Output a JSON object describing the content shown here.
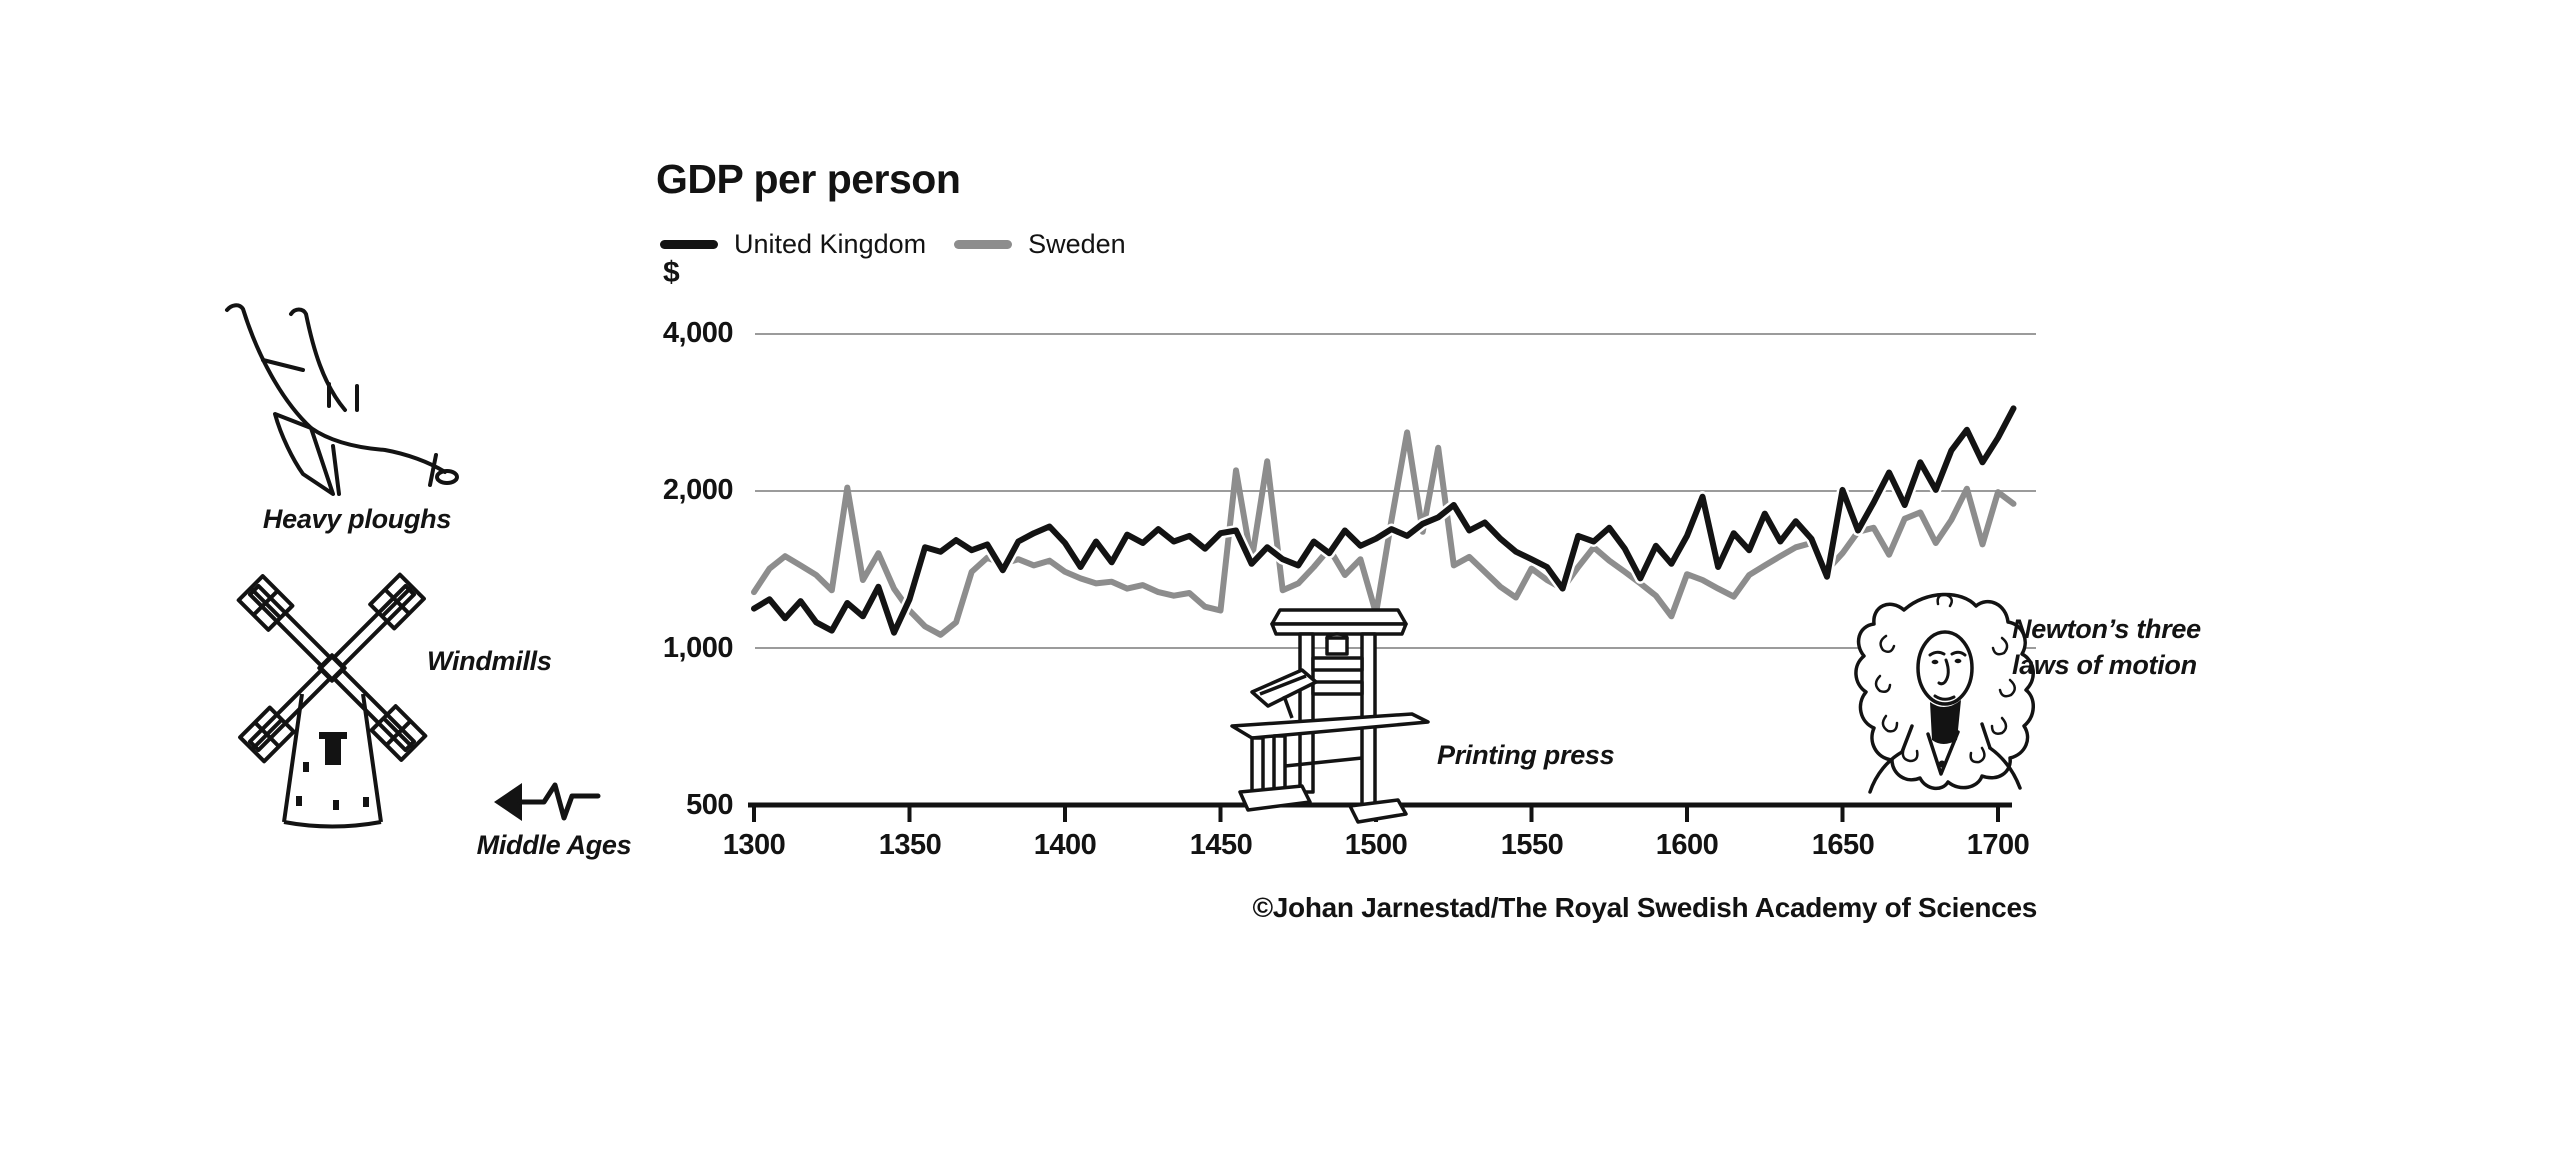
{
  "chart": {
    "title": "GDP per person",
    "unit": "$",
    "legend": [
      {
        "label": "United Kingdom",
        "color": "#131313"
      },
      {
        "label": "Sweden",
        "color": "#8d8d8d"
      }
    ],
    "y_ticks": [
      "4,000",
      "2,000",
      "1,000",
      "500"
    ],
    "x_ticks": [
      "1300",
      "1350",
      "1400",
      "1450",
      "1500",
      "1550",
      "1600",
      "1650",
      "1700"
    ]
  },
  "annotations": {
    "heavy_ploughs": "Heavy ploughs",
    "windmills": "Windmills",
    "middle_ages": "Middle Ages",
    "printing_press": "Printing press",
    "newton_line1": "Newton’s three",
    "newton_line2": "laws of motion"
  },
  "credit": "©Johan Jarnestad/The Royal Swedish Academy of Sciences",
  "chart_data": {
    "type": "line",
    "title": "GDP per person",
    "ylabel": "$",
    "y_scale": "log",
    "ylim": [
      500,
      4500
    ],
    "xlim": [
      1300,
      1710
    ],
    "x_tick_values": [
      1300,
      1350,
      1400,
      1450,
      1500,
      1550,
      1600,
      1650,
      1700
    ],
    "y_gridline_values": [
      1000,
      2000,
      4000
    ],
    "baseline_value": 500,
    "legend_position": "top-left",
    "grid": true,
    "x": [
      1300,
      1305,
      1310,
      1315,
      1320,
      1325,
      1330,
      1335,
      1340,
      1345,
      1350,
      1355,
      1360,
      1365,
      1370,
      1375,
      1380,
      1385,
      1390,
      1395,
      1400,
      1405,
      1410,
      1415,
      1420,
      1425,
      1430,
      1435,
      1440,
      1445,
      1450,
      1455,
      1460,
      1465,
      1470,
      1475,
      1480,
      1485,
      1490,
      1495,
      1500,
      1505,
      1510,
      1515,
      1520,
      1525,
      1530,
      1535,
      1540,
      1545,
      1550,
      1555,
      1560,
      1565,
      1570,
      1575,
      1580,
      1585,
      1590,
      1595,
      1600,
      1605,
      1610,
      1615,
      1620,
      1625,
      1630,
      1635,
      1640,
      1645,
      1650,
      1655,
      1660,
      1665,
      1670,
      1675,
      1680,
      1685,
      1690,
      1695,
      1700,
      1705
    ],
    "series": [
      {
        "name": "United Kingdom",
        "color": "#131313",
        "values": [
          1190,
          1240,
          1140,
          1230,
          1120,
          1080,
          1220,
          1150,
          1310,
          1070,
          1240,
          1560,
          1530,
          1610,
          1540,
          1580,
          1410,
          1600,
          1660,
          1710,
          1590,
          1430,
          1600,
          1460,
          1650,
          1590,
          1690,
          1600,
          1640,
          1550,
          1660,
          1680,
          1450,
          1560,
          1480,
          1440,
          1600,
          1520,
          1680,
          1570,
          1620,
          1690,
          1640,
          1730,
          1780,
          1880,
          1680,
          1740,
          1620,
          1530,
          1480,
          1430,
          1300,
          1640,
          1600,
          1700,
          1550,
          1360,
          1570,
          1450,
          1640,
          1950,
          1430,
          1660,
          1540,
          1810,
          1600,
          1750,
          1620,
          1370,
          2010,
          1680,
          1900,
          2170,
          1880,
          2270,
          2010,
          2390,
          2620,
          2270,
          2530,
          2880
        ]
      },
      {
        "name": "Sweden",
        "color": "#8d8d8d",
        "values": [
          1280,
          1420,
          1500,
          1440,
          1380,
          1290,
          2030,
          1350,
          1520,
          1300,
          1180,
          1100,
          1060,
          1120,
          1400,
          1490,
          1450,
          1480,
          1440,
          1470,
          1400,
          1360,
          1330,
          1340,
          1300,
          1320,
          1280,
          1260,
          1275,
          1200,
          1180,
          2190,
          1470,
          2280,
          1290,
          1330,
          1430,
          1550,
          1380,
          1480,
          1165,
          1760,
          2590,
          1670,
          2420,
          1440,
          1495,
          1400,
          1310,
          1250,
          1420,
          1350,
          1300,
          1430,
          1560,
          1470,
          1400,
          1330,
          1260,
          1150,
          1385,
          1350,
          1300,
          1255,
          1380,
          1440,
          1500,
          1560,
          1590,
          1410,
          1520,
          1670,
          1700,
          1510,
          1770,
          1820,
          1590,
          1760,
          2020,
          1580,
          1990,
          1890
        ]
      }
    ]
  }
}
